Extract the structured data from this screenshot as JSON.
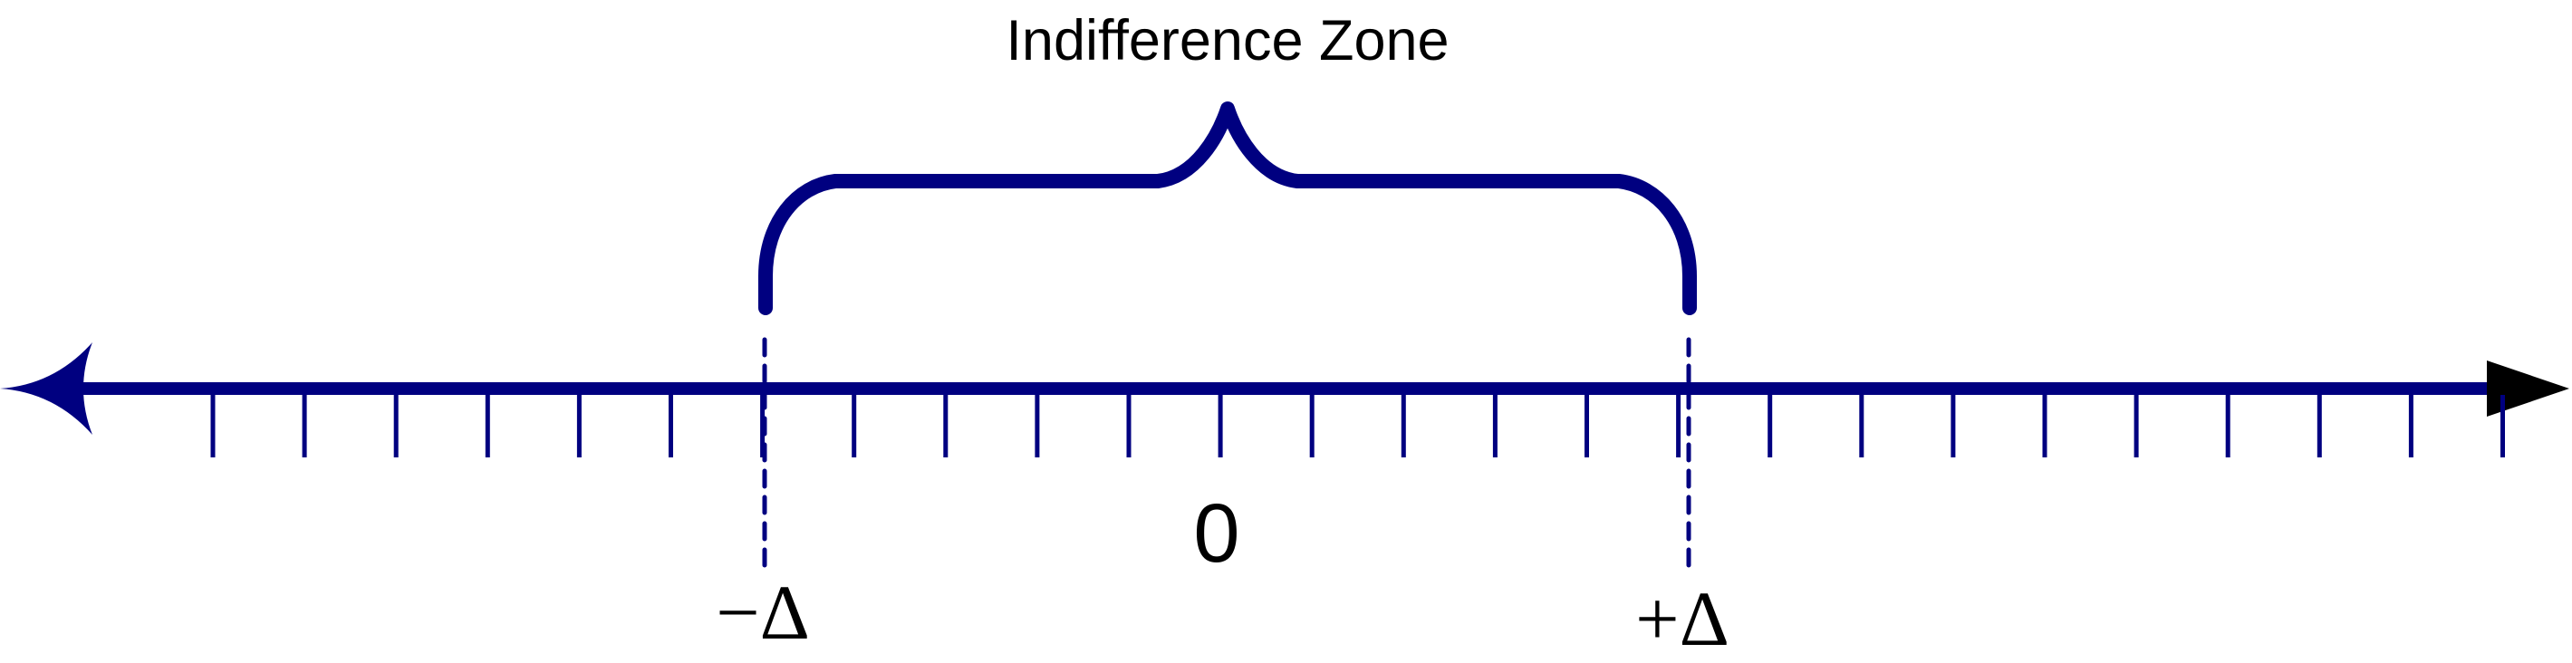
{
  "diagram": {
    "title": "Indifference Zone",
    "center_label": "0",
    "left_label": "−Δ",
    "right_label": "+Δ",
    "tick_count": 26,
    "colors": {
      "axis": "#000080",
      "text": "#000000",
      "background": "#ffffff"
    }
  }
}
